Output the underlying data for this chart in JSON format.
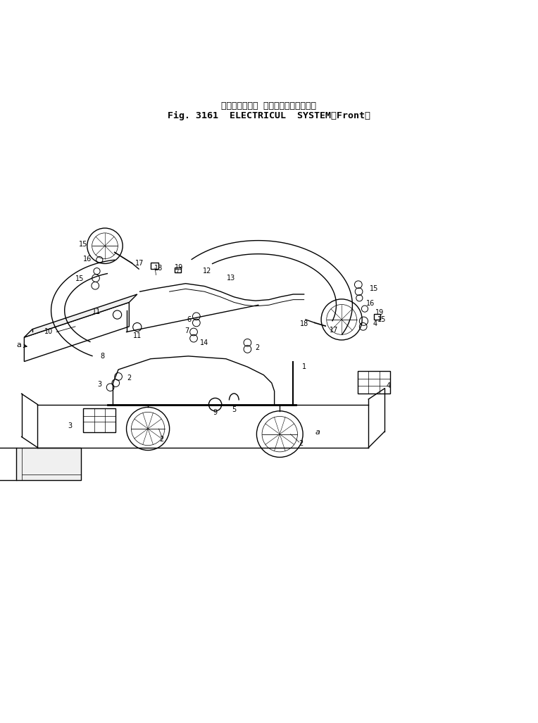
{
  "title_japanese": "エレクトリカル システム（フロント）",
  "title_english": "Fig. 3161  ELECTRICUL  SYSTEM（Front）",
  "background_color": "#ffffff",
  "line_color": "#000000",
  "text_color": "#000000",
  "fig_width": 7.64,
  "fig_height": 10.27,
  "dpi": 100
}
